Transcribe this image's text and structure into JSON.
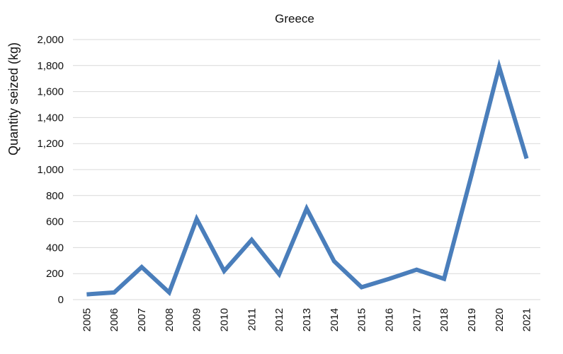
{
  "chart_data": {
    "type": "line",
    "title": "Greece",
    "xlabel": "",
    "ylabel": "Quantity seized (kg)",
    "x": [
      "2005",
      "2006",
      "2007",
      "2008",
      "2009",
      "2010",
      "2011",
      "2012",
      "2013",
      "2014",
      "2015",
      "2016",
      "2017",
      "2018",
      "2019",
      "2020",
      "2021"
    ],
    "series": [
      {
        "values": [
          40,
          55,
          250,
          55,
          620,
          220,
          460,
          195,
          700,
          295,
          95,
          160,
          230,
          160,
          960,
          1790,
          1085
        ]
      }
    ],
    "ylim": [
      0,
      2000
    ],
    "yticks": [
      0,
      200,
      400,
      600,
      800,
      1000,
      1200,
      1400,
      1600,
      1800,
      2000
    ],
    "ytick_labels": [
      "0",
      "200",
      "400",
      "600",
      "800",
      "1,000",
      "1,200",
      "1,400",
      "1,600",
      "1,800",
      "2,000"
    ],
    "grid": true,
    "line_color": "#4a7ebb"
  }
}
